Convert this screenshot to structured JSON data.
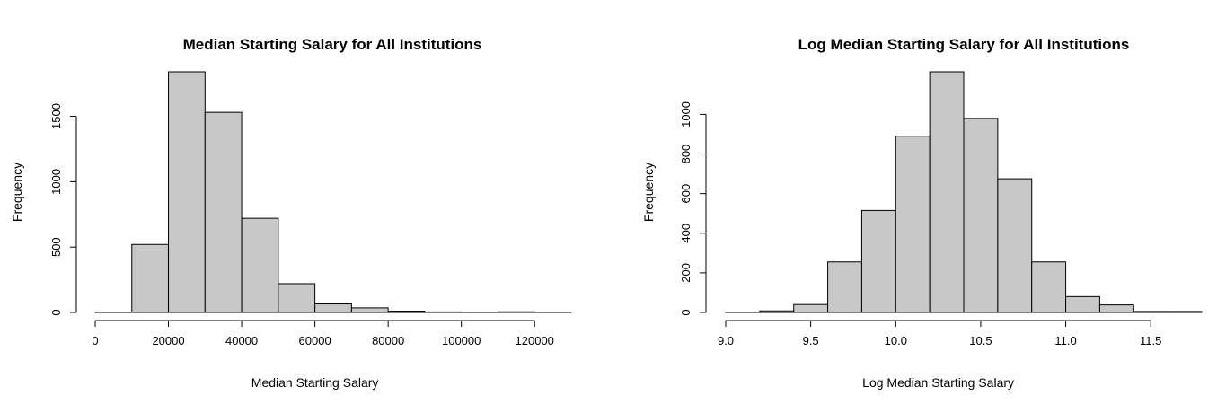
{
  "chart_data": [
    {
      "type": "bar",
      "title": "Median Starting Salary for All Institutions",
      "xlabel": "Median Starting Salary",
      "ylabel": "Frequency",
      "bin_edges": [
        0,
        10000,
        20000,
        30000,
        40000,
        50000,
        60000,
        70000,
        80000,
        90000,
        100000,
        110000,
        120000,
        130000
      ],
      "values": [
        3,
        520,
        1840,
        1530,
        720,
        220,
        65,
        35,
        10,
        4,
        2,
        5,
        2
      ],
      "xlim": [
        0,
        130000
      ],
      "ylim": [
        0,
        1840
      ],
      "xticks": [
        0,
        20000,
        40000,
        60000,
        80000,
        100000,
        120000
      ],
      "xtick_labels": [
        "0",
        "20000",
        "40000",
        "60000",
        "80000",
        "100000",
        "120000"
      ],
      "yticks": [
        0,
        500,
        1000,
        1500
      ],
      "ytick_labels": [
        "0",
        "500",
        "1000",
        "1500"
      ],
      "grid": false,
      "bar_color": "#c8c8c8"
    },
    {
      "type": "bar",
      "title": "Log Median Starting Salary for All Institutions",
      "xlabel": "Log Median Starting Salary",
      "ylabel": "Frequency",
      "bin_edges": [
        9.0,
        9.2,
        9.4,
        9.6,
        9.8,
        10.0,
        10.2,
        10.4,
        10.6,
        10.8,
        11.0,
        11.2,
        11.4,
        11.6,
        11.8
      ],
      "values": [
        2,
        8,
        40,
        255,
        515,
        890,
        1215,
        980,
        675,
        255,
        80,
        38,
        5,
        5
      ],
      "xlim": [
        9.0,
        11.8
      ],
      "ylim": [
        0,
        1215
      ],
      "xticks": [
        9.0,
        9.5,
        10.0,
        10.5,
        11.0,
        11.5
      ],
      "xtick_labels": [
        "9.0",
        "9.5",
        "10.0",
        "10.5",
        "11.0",
        "11.5"
      ],
      "yticks": [
        0,
        200,
        400,
        600,
        800,
        1000
      ],
      "ytick_labels": [
        "0",
        "200",
        "400",
        "600",
        "800",
        "1000"
      ],
      "grid": false,
      "bar_color": "#c8c8c8"
    }
  ]
}
